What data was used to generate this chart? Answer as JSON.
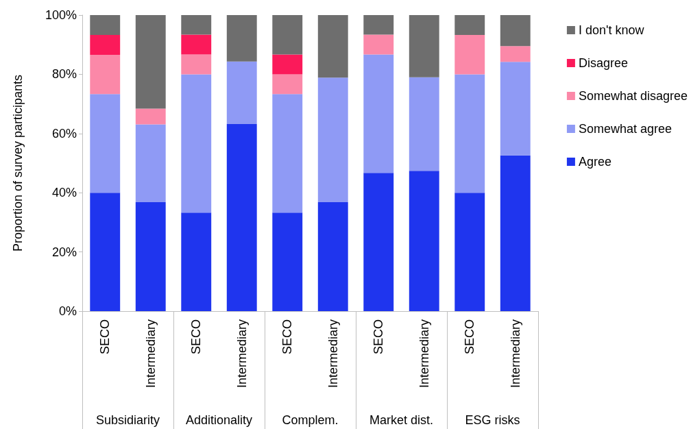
{
  "chart_data": {
    "type": "bar",
    "stacked": true,
    "ylabel": "Proportion of survey participants",
    "categories": [
      "SECO",
      "Intermediary",
      "SECO",
      "Intermediary",
      "SECO",
      "Intermediary",
      "SECO",
      "Intermediary",
      "SECO",
      "Intermediary"
    ],
    "annotations": [
      "Subsidiarity",
      "Additionality",
      "Complem.",
      "Market dist.",
      "ESG risks"
    ],
    "series": [
      {
        "name": "Agree",
        "color": "#1f35ee",
        "values": [
          40,
          36.8,
          33.3,
          63.2,
          33.3,
          36.8,
          46.7,
          47.4,
          40,
          52.6
        ]
      },
      {
        "name": "Somewhat agree",
        "color": "#8f9af5",
        "values": [
          33.3,
          26.3,
          46.7,
          21.1,
          40,
          42.1,
          40,
          31.6,
          40,
          31.6
        ]
      },
      {
        "name": "Somewhat disagree",
        "color": "#fb88a8",
        "values": [
          13.3,
          5.3,
          6.7,
          0,
          6.7,
          0,
          6.7,
          0,
          13.3,
          5.3
        ]
      },
      {
        "name": "Disagree",
        "color": "#fb1a5a",
        "values": [
          6.7,
          0,
          6.7,
          0,
          6.7,
          0,
          0,
          0,
          0,
          0
        ]
      },
      {
        "name": "I don't know",
        "color": "#6e6e6e",
        "values": [
          6.7,
          31.6,
          6.7,
          15.8,
          13.3,
          21.1,
          6.7,
          21.1,
          6.7,
          10.5
        ]
      }
    ],
    "ylim": [
      0,
      100
    ],
    "yticks": [
      {
        "value": 0,
        "label": "0%"
      },
      {
        "value": 20,
        "label": "20%"
      },
      {
        "value": 40,
        "label": "40%"
      },
      {
        "value": 60,
        "label": "60%"
      },
      {
        "value": 80,
        "label": "80%"
      },
      {
        "value": 100,
        "label": "100%"
      }
    ],
    "grid": false,
    "legend": "right"
  }
}
